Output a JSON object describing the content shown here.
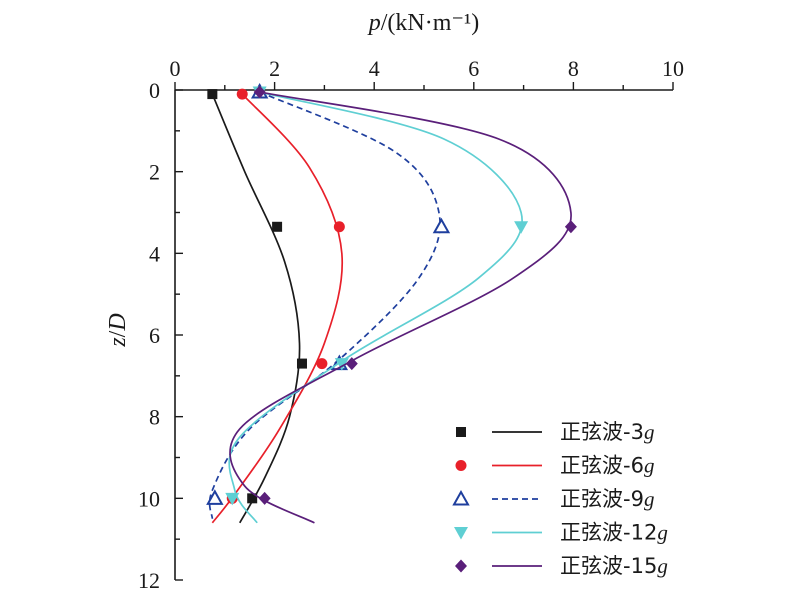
{
  "chart_data": {
    "type": "line",
    "title": "",
    "xlabel": "p/(kN·m⁻¹)",
    "ylabel": "z/D",
    "xlim": [
      0,
      10
    ],
    "ylim": [
      0,
      12
    ],
    "x_axis_position": "top",
    "y_axis_inverted": true,
    "x_ticks": [
      0,
      2,
      4,
      6,
      8,
      10
    ],
    "y_ticks": [
      0,
      2,
      4,
      6,
      8,
      10,
      12
    ],
    "grid": false,
    "legend_position": "bottom-right",
    "series": [
      {
        "name": "正弦波-3g",
        "color": "#1a1a1a",
        "marker": "square",
        "line_style": "solid",
        "points": [
          {
            "p": 0.75,
            "z": 0.1
          },
          {
            "p": 2.05,
            "z": 3.35
          },
          {
            "p": 2.55,
            "z": 6.7
          },
          {
            "p": 1.55,
            "z": 10.0
          }
        ],
        "curve": [
          {
            "p": 0.75,
            "z": 0.1
          },
          {
            "p": 1.4,
            "z": 2.0
          },
          {
            "p": 2.2,
            "z": 4.2
          },
          {
            "p": 2.5,
            "z": 6.2
          },
          {
            "p": 2.3,
            "z": 8.0
          },
          {
            "p": 1.8,
            "z": 9.5
          },
          {
            "p": 1.3,
            "z": 10.6
          }
        ]
      },
      {
        "name": "正弦波-6g",
        "color": "#e8202a",
        "marker": "circle",
        "line_style": "solid",
        "points": [
          {
            "p": 1.35,
            "z": 0.1
          },
          {
            "p": 3.3,
            "z": 3.35
          },
          {
            "p": 2.95,
            "z": 6.7
          },
          {
            "p": 1.15,
            "z": 10.0
          }
        ],
        "curve": [
          {
            "p": 1.35,
            "z": 0.1
          },
          {
            "p": 2.7,
            "z": 1.9
          },
          {
            "p": 3.35,
            "z": 4.0
          },
          {
            "p": 3.0,
            "z": 6.2
          },
          {
            "p": 2.1,
            "z": 8.3
          },
          {
            "p": 1.2,
            "z": 9.9
          },
          {
            "p": 0.75,
            "z": 10.6
          }
        ]
      },
      {
        "name": "正弦波-9g",
        "color": "#1f3f9e",
        "marker": "triangle-open",
        "line_style": "dashed",
        "points": [
          {
            "p": 1.7,
            "z": 0.05
          },
          {
            "p": 5.35,
            "z": 3.35
          },
          {
            "p": 3.3,
            "z": 6.7
          },
          {
            "p": 0.8,
            "z": 10.0
          }
        ],
        "curve": [
          {
            "p": 1.7,
            "z": 0.05
          },
          {
            "p": 4.4,
            "z": 1.5
          },
          {
            "p": 5.3,
            "z": 3.0
          },
          {
            "p": 4.9,
            "z": 4.6
          },
          {
            "p": 3.3,
            "z": 6.6
          },
          {
            "p": 1.5,
            "z": 8.3
          },
          {
            "p": 0.75,
            "z": 9.8
          },
          {
            "p": 0.75,
            "z": 10.5
          }
        ]
      },
      {
        "name": "正弦波-12g",
        "color": "#5fcfd3",
        "marker": "triangle-down",
        "line_style": "solid",
        "points": [
          {
            "p": 1.7,
            "z": 0.05
          },
          {
            "p": 6.95,
            "z": 3.35
          },
          {
            "p": 3.35,
            "z": 6.7
          },
          {
            "p": 1.15,
            "z": 10.0
          }
        ],
        "curve": [
          {
            "p": 1.7,
            "z": 0.05
          },
          {
            "p": 5.4,
            "z": 1.2
          },
          {
            "p": 6.95,
            "z": 3.0
          },
          {
            "p": 6.1,
            "z": 4.6
          },
          {
            "p": 3.4,
            "z": 6.6
          },
          {
            "p": 1.3,
            "z": 8.5
          },
          {
            "p": 1.2,
            "z": 9.8
          },
          {
            "p": 1.65,
            "z": 10.6
          }
        ]
      },
      {
        "name": "正弦波-15g",
        "color": "#5a1f7a",
        "marker": "diamond",
        "line_style": "solid",
        "points": [
          {
            "p": 1.7,
            "z": 0.05
          },
          {
            "p": 7.95,
            "z": 3.35
          },
          {
            "p": 3.55,
            "z": 6.7
          },
          {
            "p": 1.8,
            "z": 10.0
          }
        ],
        "curve": [
          {
            "p": 1.7,
            "z": 0.05
          },
          {
            "p": 6.5,
            "z": 1.2
          },
          {
            "p": 7.95,
            "z": 3.0
          },
          {
            "p": 6.8,
            "z": 4.6
          },
          {
            "p": 3.6,
            "z": 6.6
          },
          {
            "p": 1.3,
            "z": 8.3
          },
          {
            "p": 1.4,
            "z": 9.7
          },
          {
            "p": 2.8,
            "z": 10.6
          }
        ]
      }
    ]
  }
}
